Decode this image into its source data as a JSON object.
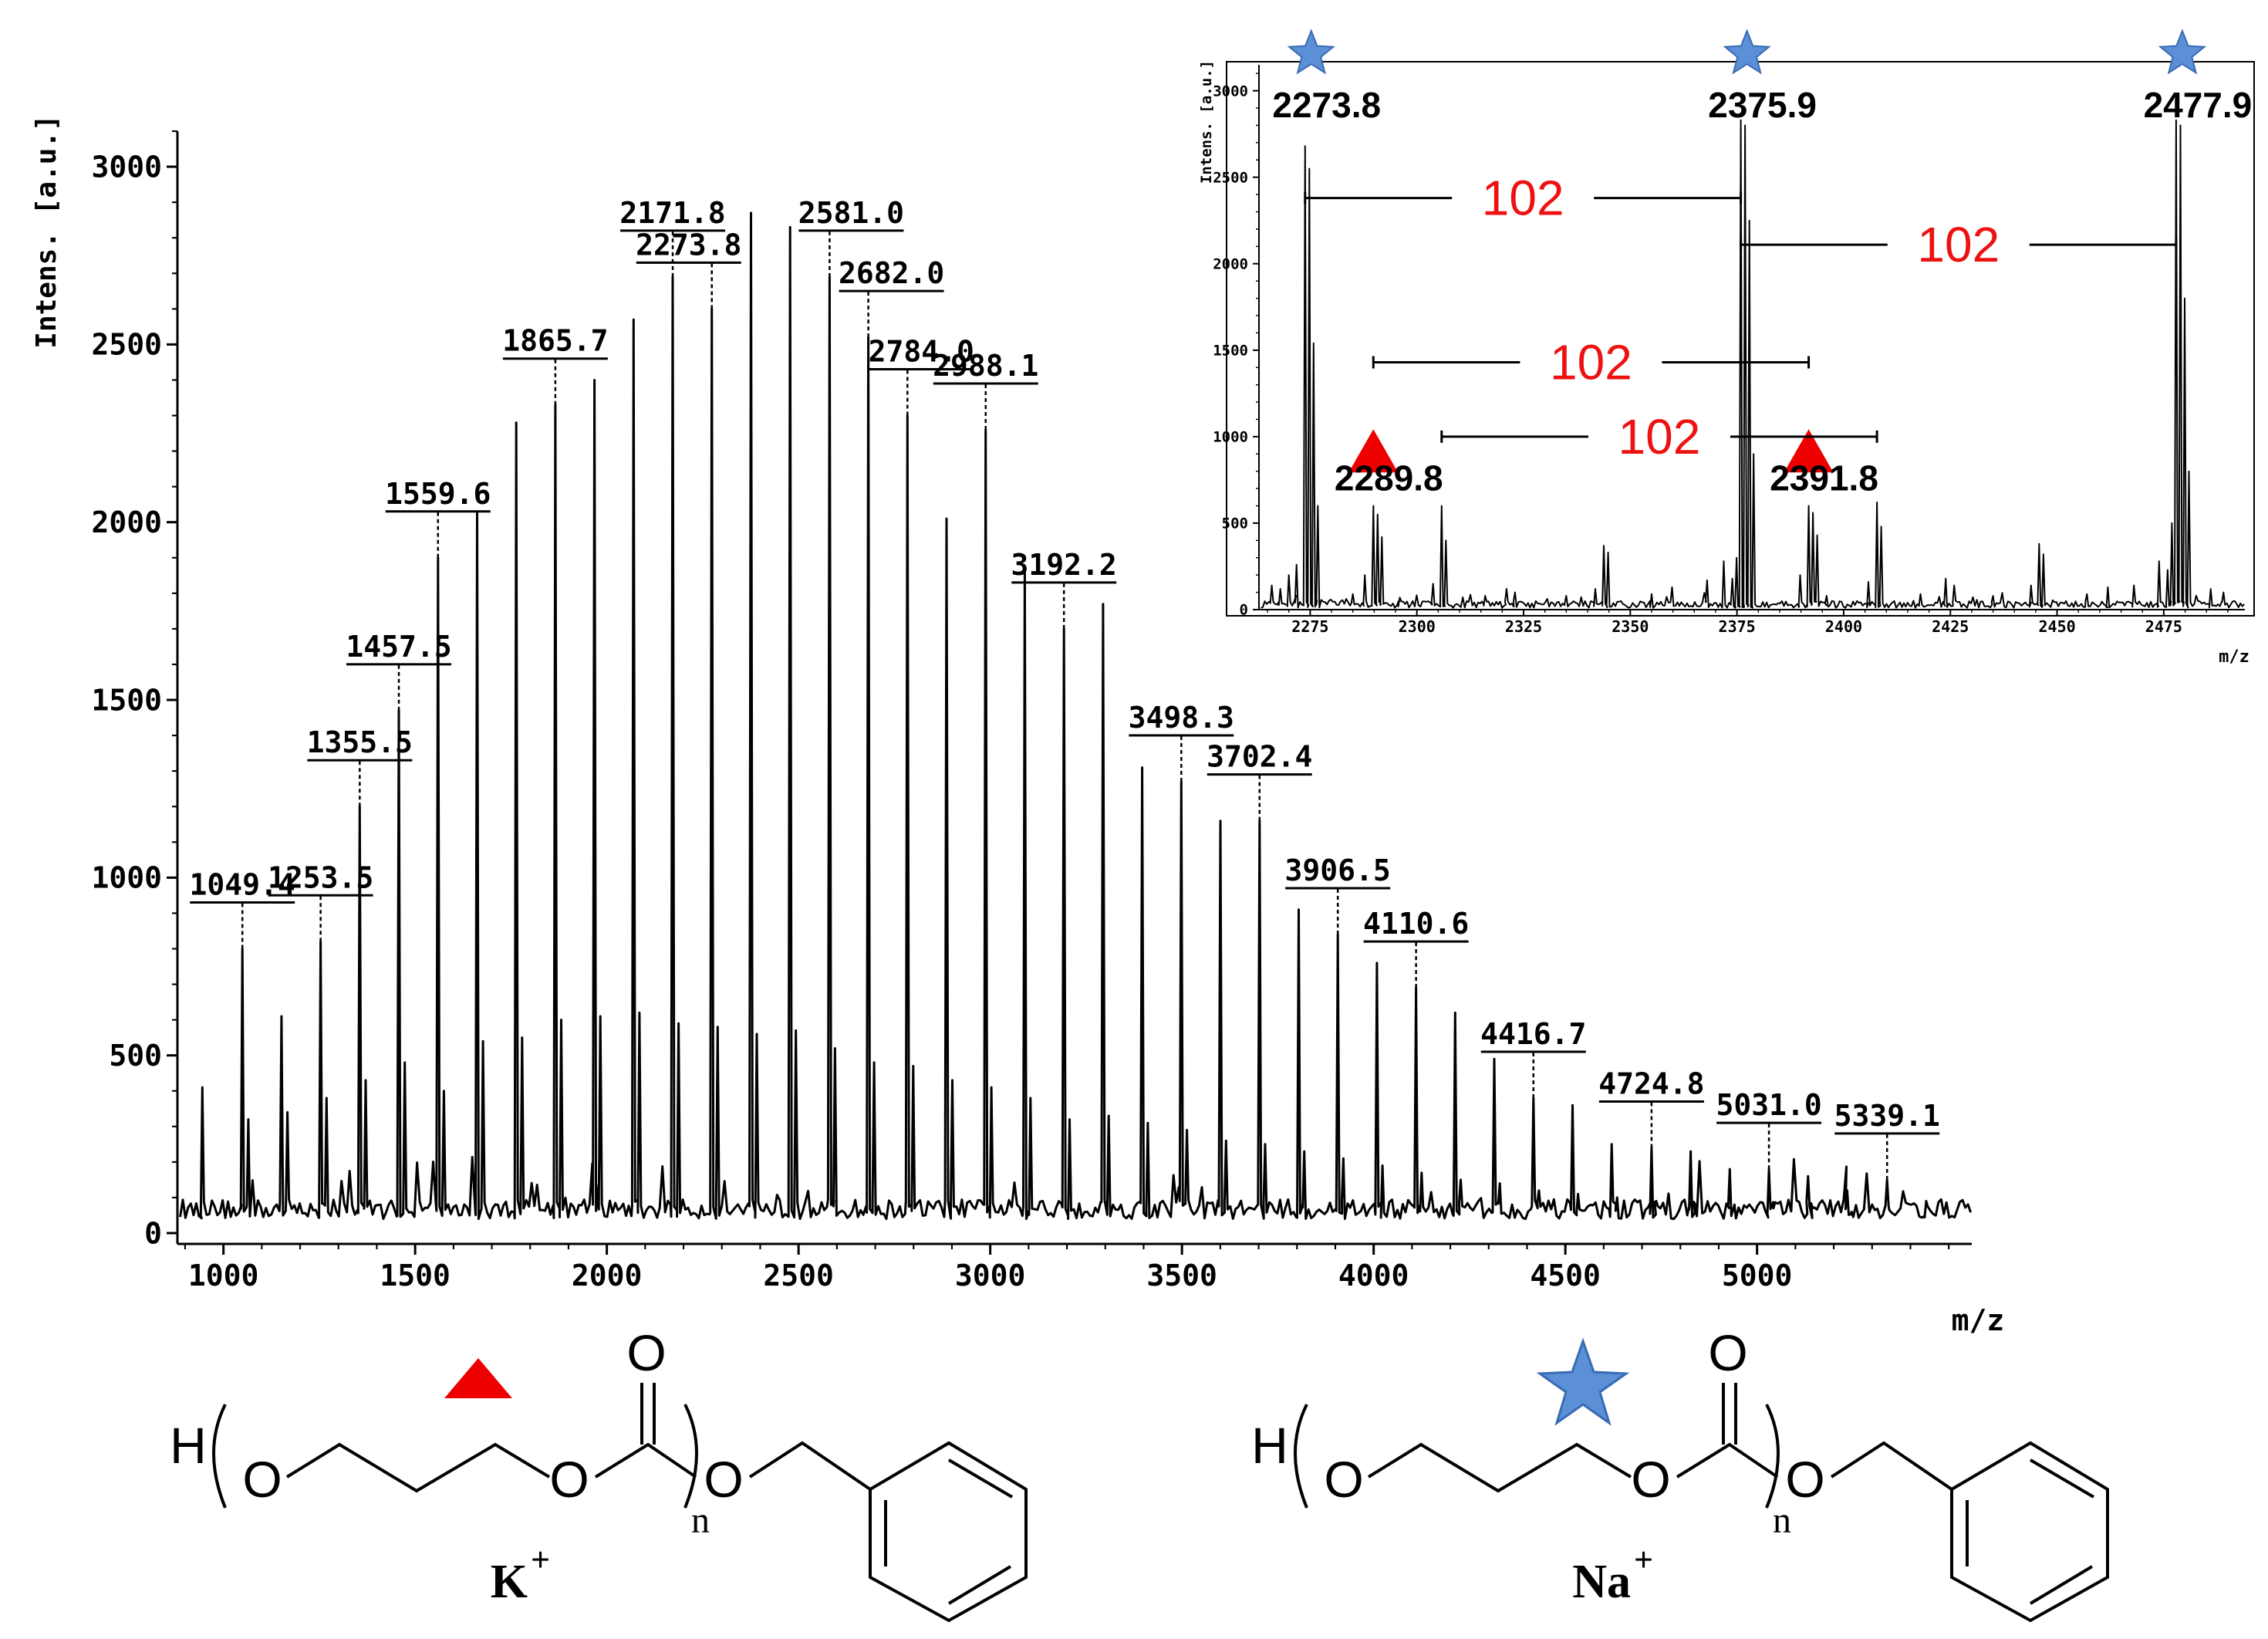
{
  "chart_data": [
    {
      "type": "line",
      "subtype": "mass-spectrum",
      "title": "",
      "xlabel": "m/z",
      "ylabel": "Intens. [a.u.]",
      "xlim": [
        880,
        5560
      ],
      "ylim": [
        0,
        3100
      ],
      "xticks": [
        "1000",
        "1500",
        "2000",
        "2500",
        "3000",
        "3500",
        "4000",
        "4500",
        "5000"
      ],
      "yticks": [
        "0",
        "500",
        "1000",
        "1500",
        "2000",
        "2500",
        "3000"
      ],
      "grid": false,
      "peaks": [
        {
          "mz": 1049.4,
          "intensity": 800,
          "label": "1049.4"
        },
        {
          "mz": 1151.5,
          "intensity": 610,
          "label": ""
        },
        {
          "mz": 1253.5,
          "intensity": 820,
          "label": "1253.5"
        },
        {
          "mz": 1355.5,
          "intensity": 1200,
          "label": "1355.5"
        },
        {
          "mz": 1457.5,
          "intensity": 1470,
          "label": "1457.5"
        },
        {
          "mz": 1559.6,
          "intensity": 1900,
          "label": "1559.6"
        },
        {
          "mz": 1661.6,
          "intensity": 2030,
          "label": ""
        },
        {
          "mz": 1763.7,
          "intensity": 2280,
          "label": ""
        },
        {
          "mz": 1865.7,
          "intensity": 2330,
          "label": "1865.7"
        },
        {
          "mz": 1967.7,
          "intensity": 2400,
          "label": ""
        },
        {
          "mz": 2069.8,
          "intensity": 2570,
          "label": ""
        },
        {
          "mz": 2171.8,
          "intensity": 2690,
          "label": "2171.8"
        },
        {
          "mz": 2273.8,
          "intensity": 2600,
          "label": "2273.8"
        },
        {
          "mz": 2375.9,
          "intensity": 2870,
          "label": ""
        },
        {
          "mz": 2477.9,
          "intensity": 2830,
          "label": ""
        },
        {
          "mz": 2581.0,
          "intensity": 2690,
          "label": "2581.0"
        },
        {
          "mz": 2682.0,
          "intensity": 2520,
          "label": "2682.0"
        },
        {
          "mz": 2784.0,
          "intensity": 2300,
          "label": "2784.0"
        },
        {
          "mz": 2886.1,
          "intensity": 2010,
          "label": ""
        },
        {
          "mz": 2988.1,
          "intensity": 2260,
          "label": "2988.1"
        },
        {
          "mz": 3090.1,
          "intensity": 1870,
          "label": ""
        },
        {
          "mz": 3192.2,
          "intensity": 1700,
          "label": "3192.2"
        },
        {
          "mz": 3294.2,
          "intensity": 1770,
          "label": ""
        },
        {
          "mz": 3396.3,
          "intensity": 1310,
          "label": ""
        },
        {
          "mz": 3498.3,
          "intensity": 1270,
          "label": "3498.3"
        },
        {
          "mz": 3600.3,
          "intensity": 1160,
          "label": ""
        },
        {
          "mz": 3702.4,
          "intensity": 1160,
          "label": "3702.4"
        },
        {
          "mz": 3804.4,
          "intensity": 910,
          "label": ""
        },
        {
          "mz": 3906.5,
          "intensity": 840,
          "label": "3906.5"
        },
        {
          "mz": 4008.5,
          "intensity": 760,
          "label": ""
        },
        {
          "mz": 4110.6,
          "intensity": 690,
          "label": "4110.6"
        },
        {
          "mz": 4212.6,
          "intensity": 620,
          "label": ""
        },
        {
          "mz": 4314.6,
          "intensity": 490,
          "label": ""
        },
        {
          "mz": 4416.7,
          "intensity": 380,
          "label": "4416.7"
        },
        {
          "mz": 4518.7,
          "intensity": 360,
          "label": ""
        },
        {
          "mz": 4620.7,
          "intensity": 250,
          "label": ""
        },
        {
          "mz": 4724.8,
          "intensity": 240,
          "label": "4724.8"
        },
        {
          "mz": 4826.8,
          "intensity": 230,
          "label": ""
        },
        {
          "mz": 4928.9,
          "intensity": 180,
          "label": ""
        },
        {
          "mz": 5031.0,
          "intensity": 180,
          "label": "5031.0"
        },
        {
          "mz": 5133.0,
          "intensity": 160,
          "label": ""
        },
        {
          "mz": 5235.0,
          "intensity": 120,
          "label": ""
        },
        {
          "mz": 5339.1,
          "intensity": 150,
          "label": "5339.1"
        },
        {
          "mz": 5441.1,
          "intensity": 90,
          "label": ""
        }
      ],
      "secondary_peaks": [
        {
          "mz": 945,
          "intensity": 410
        },
        {
          "mz": 1065,
          "intensity": 320
        },
        {
          "mz": 1167,
          "intensity": 340
        },
        {
          "mz": 1269,
          "intensity": 380
        },
        {
          "mz": 1371,
          "intensity": 430
        },
        {
          "mz": 1473,
          "intensity": 480
        },
        {
          "mz": 1575,
          "intensity": 400
        },
        {
          "mz": 1677,
          "intensity": 540
        },
        {
          "mz": 1779,
          "intensity": 550
        },
        {
          "mz": 1881,
          "intensity": 600
        },
        {
          "mz": 1983,
          "intensity": 610
        },
        {
          "mz": 2085,
          "intensity": 620
        },
        {
          "mz": 2187,
          "intensity": 590
        },
        {
          "mz": 2289,
          "intensity": 580
        },
        {
          "mz": 2391,
          "intensity": 560
        },
        {
          "mz": 2493,
          "intensity": 570
        },
        {
          "mz": 2595,
          "intensity": 520
        },
        {
          "mz": 2697,
          "intensity": 480
        },
        {
          "mz": 2799,
          "intensity": 470
        },
        {
          "mz": 2901,
          "intensity": 430
        },
        {
          "mz": 3003,
          "intensity": 410
        },
        {
          "mz": 3105,
          "intensity": 380
        },
        {
          "mz": 3207,
          "intensity": 320
        },
        {
          "mz": 3309,
          "intensity": 330
        },
        {
          "mz": 3411,
          "intensity": 310
        },
        {
          "mz": 3513,
          "intensity": 290
        },
        {
          "mz": 3615,
          "intensity": 260
        },
        {
          "mz": 3717,
          "intensity": 250
        },
        {
          "mz": 3819,
          "intensity": 230
        },
        {
          "mz": 3921,
          "intensity": 210
        },
        {
          "mz": 4023,
          "intensity": 190
        },
        {
          "mz": 4125,
          "intensity": 170
        },
        {
          "mz": 4227,
          "intensity": 150
        },
        {
          "mz": 4329,
          "intensity": 140
        },
        {
          "mz": 4431,
          "intensity": 120
        },
        {
          "mz": 4533,
          "intensity": 110
        },
        {
          "mz": 4635,
          "intensity": 100
        },
        {
          "mz": 4737,
          "intensity": 90
        },
        {
          "mz": 4839,
          "intensity": 80
        },
        {
          "mz": 4941,
          "intensity": 80
        },
        {
          "mz": 5043,
          "intensity": 70
        },
        {
          "mz": 5145,
          "intensity": 70
        },
        {
          "mz": 5247,
          "intensity": 60
        },
        {
          "mz": 5349,
          "intensity": 60
        }
      ],
      "baseline": 40
    },
    {
      "type": "line",
      "subtype": "mass-spectrum-inset",
      "title": "",
      "xlabel": "m/z",
      "ylabel": "Intens. [a.u.]",
      "xlim": [
        2263,
        2494
      ],
      "ylim": [
        0,
        3150
      ],
      "xticks": [
        "2275",
        "2300",
        "2325",
        "2350",
        "2375",
        "2400",
        "2425",
        "2450",
        "2475"
      ],
      "yticks": [
        "0",
        "500",
        "1000",
        "1500",
        "2000",
        "2500",
        "3000"
      ],
      "grid": false,
      "peaks": [
        {
          "mz": 2273.8,
          "intensity": 2680,
          "label": "2273.8",
          "marker": "star"
        },
        {
          "mz": 2274.8,
          "intensity": 2550,
          "label": "",
          "marker": ""
        },
        {
          "mz": 2275.8,
          "intensity": 1540,
          "label": "",
          "marker": ""
        },
        {
          "mz": 2276.8,
          "intensity": 600,
          "label": "",
          "marker": ""
        },
        {
          "mz": 2289.8,
          "intensity": 600,
          "label": "2289.8",
          "marker": "triangle"
        },
        {
          "mz": 2290.8,
          "intensity": 550,
          "label": "",
          "marker": ""
        },
        {
          "mz": 2291.8,
          "intensity": 420,
          "label": "",
          "marker": ""
        },
        {
          "mz": 2305.8,
          "intensity": 600,
          "label": "",
          "marker": ""
        },
        {
          "mz": 2306.8,
          "intensity": 400,
          "label": "",
          "marker": ""
        },
        {
          "mz": 2343.8,
          "intensity": 370,
          "label": "",
          "marker": ""
        },
        {
          "mz": 2344.8,
          "intensity": 330,
          "label": "",
          "marker": ""
        },
        {
          "mz": 2374.9,
          "intensity": 300,
          "label": "",
          "marker": ""
        },
        {
          "mz": 2375.9,
          "intensity": 2830,
          "label": "2375.9",
          "marker": "star"
        },
        {
          "mz": 2376.9,
          "intensity": 2800,
          "label": "",
          "marker": ""
        },
        {
          "mz": 2377.9,
          "intensity": 2250,
          "label": "",
          "marker": ""
        },
        {
          "mz": 2378.9,
          "intensity": 900,
          "label": "",
          "marker": ""
        },
        {
          "mz": 2391.8,
          "intensity": 600,
          "label": "2391.8",
          "marker": "triangle"
        },
        {
          "mz": 2392.8,
          "intensity": 560,
          "label": "",
          "marker": ""
        },
        {
          "mz": 2393.8,
          "intensity": 430,
          "label": "",
          "marker": ""
        },
        {
          "mz": 2407.8,
          "intensity": 620,
          "label": "",
          "marker": ""
        },
        {
          "mz": 2408.8,
          "intensity": 480,
          "label": "",
          "marker": ""
        },
        {
          "mz": 2445.8,
          "intensity": 380,
          "label": "",
          "marker": ""
        },
        {
          "mz": 2446.8,
          "intensity": 320,
          "label": "",
          "marker": ""
        },
        {
          "mz": 2476.9,
          "intensity": 500,
          "label": "",
          "marker": ""
        },
        {
          "mz": 2477.9,
          "intensity": 2830,
          "label": "2477.9",
          "marker": "star"
        },
        {
          "mz": 2478.9,
          "intensity": 2800,
          "label": "",
          "marker": ""
        },
        {
          "mz": 2479.9,
          "intensity": 1800,
          "label": "",
          "marker": ""
        },
        {
          "mz": 2480.9,
          "intensity": 800,
          "label": "",
          "marker": ""
        }
      ],
      "minor_peaks": [
        {
          "mz": 2266,
          "intensity": 140
        },
        {
          "mz": 2268,
          "intensity": 120
        },
        {
          "mz": 2270,
          "intensity": 200
        },
        {
          "mz": 2271.8,
          "intensity": 260
        },
        {
          "mz": 2285,
          "intensity": 90
        },
        {
          "mz": 2287.8,
          "intensity": 200
        },
        {
          "mz": 2296,
          "intensity": 70
        },
        {
          "mz": 2303.8,
          "intensity": 150
        },
        {
          "mz": 2316,
          "intensity": 80
        },
        {
          "mz": 2321,
          "intensity": 120
        },
        {
          "mz": 2323,
          "intensity": 100
        },
        {
          "mz": 2335,
          "intensity": 80
        },
        {
          "mz": 2341.8,
          "intensity": 120
        },
        {
          "mz": 2355,
          "intensity": 90
        },
        {
          "mz": 2359.8,
          "intensity": 130
        },
        {
          "mz": 2368,
          "intensity": 170
        },
        {
          "mz": 2371.9,
          "intensity": 280
        },
        {
          "mz": 2373.9,
          "intensity": 180
        },
        {
          "mz": 2389.8,
          "intensity": 200
        },
        {
          "mz": 2396,
          "intensity": 80
        },
        {
          "mz": 2405.8,
          "intensity": 160
        },
        {
          "mz": 2418,
          "intensity": 90
        },
        {
          "mz": 2423.9,
          "intensity": 180
        },
        {
          "mz": 2425.9,
          "intensity": 140
        },
        {
          "mz": 2435,
          "intensity": 80
        },
        {
          "mz": 2443.9,
          "intensity": 140
        },
        {
          "mz": 2457,
          "intensity": 90
        },
        {
          "mz": 2461.9,
          "intensity": 130
        },
        {
          "mz": 2468,
          "intensity": 140
        },
        {
          "mz": 2473.9,
          "intensity": 280
        },
        {
          "mz": 2475.9,
          "intensity": 230
        },
        {
          "mz": 2486,
          "intensity": 120
        },
        {
          "mz": 2489,
          "intensity": 100
        }
      ],
      "baseline": 10,
      "spacing_annotations": [
        {
          "text": "102",
          "from_mz": 2273.8,
          "to_mz": 2375.9,
          "at_intensity": 2380,
          "color": "#ee1111"
        },
        {
          "text": "102",
          "from_mz": 2375.9,
          "to_mz": 2477.9,
          "at_intensity": 2110,
          "color": "#ee1111"
        },
        {
          "text": "102",
          "from_mz": 2289.8,
          "to_mz": 2391.8,
          "at_intensity": 1430,
          "color": "#ee1111"
        },
        {
          "text": "102",
          "from_mz": 2305.8,
          "to_mz": 2407.8,
          "at_intensity": 1000,
          "color": "#ee1111"
        }
      ]
    }
  ],
  "colors": {
    "spectrum": "#000000",
    "annotation": "#ee1111",
    "triangle_marker": "#ee0000",
    "star_marker": "#5b8fd6",
    "star_outline": "#3a6bb3"
  },
  "structures": [
    {
      "ion_label": "K",
      "charge": "+",
      "marker": "triangle",
      "atoms": {
        "terminal_h": "H",
        "ether_o": "O",
        "ester_o": "O",
        "carbonyl_o": "O",
        "benzyl_o": "O"
      },
      "repeat_subscript": "n"
    },
    {
      "ion_label": "Na",
      "charge": "+",
      "marker": "star",
      "atoms": {
        "terminal_h": "H",
        "ether_o": "O",
        "ester_o": "O",
        "carbonyl_o": "O",
        "benzyl_o": "O"
      },
      "repeat_subscript": "n"
    }
  ]
}
